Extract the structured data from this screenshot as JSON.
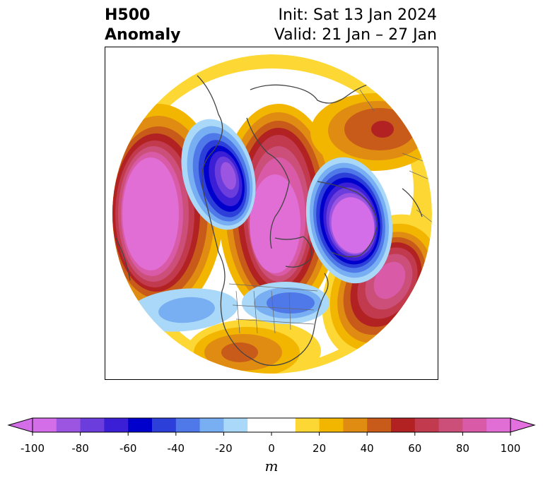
{
  "title": {
    "left_line1": "H500",
    "left_line2": "Anomaly",
    "right_line1": "Init: Sat 13 Jan 2024",
    "right_line2": "Valid: 21 Jan – 27 Jan"
  },
  "map": {
    "projection": "north-polar-stereographic",
    "variable": "H500 Anomaly",
    "features": [
      "coastlines",
      "country-borders",
      "us-state-borders"
    ]
  },
  "colorbar": {
    "units": "m",
    "ticks": [
      "-100",
      "-80",
      "-60",
      "-40",
      "-20",
      "0",
      "20",
      "40",
      "60",
      "80",
      "100"
    ],
    "levels": [
      -100,
      -90,
      -80,
      -70,
      -60,
      -50,
      -40,
      -30,
      -20,
      -10,
      10,
      20,
      30,
      40,
      50,
      60,
      70,
      80,
      90,
      100
    ],
    "colors": [
      "#d36ee8",
      "#9c55e0",
      "#6a3ddc",
      "#3b1fd6",
      "#0000cd",
      "#2c3fd8",
      "#4f79e8",
      "#78aef2",
      "#aad8f8",
      "#ffffff",
      "#fdd835",
      "#f2b600",
      "#e08c12",
      "#c85a1a",
      "#b22222",
      "#c13a4e",
      "#cc4f7a",
      "#d95ba8",
      "#e06ed4"
    ],
    "extend_min_color": "#d36ee8",
    "extend_max_color": "#e46fde"
  }
}
